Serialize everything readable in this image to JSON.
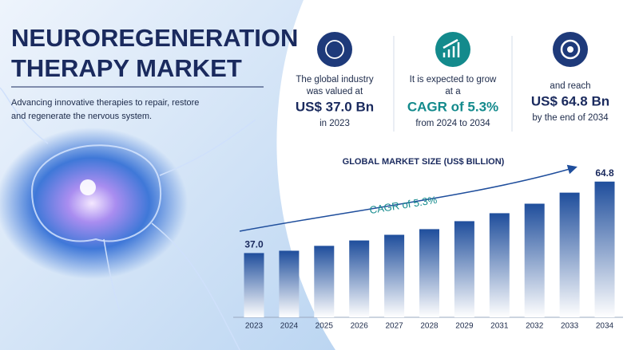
{
  "header": {
    "title_lines": [
      "NEUROREGENERATION",
      "THERAPY MARKET"
    ],
    "subtitle_lines": [
      "Advancing innovative therapies to repair, restore",
      "and regenerate the nervous system."
    ]
  },
  "stats": [
    {
      "intro": [
        "The global industry",
        "was valued at"
      ],
      "value": "US$ 37.0 Bn",
      "note": "in 2023"
    },
    {
      "intro": [
        "It is expected to grow",
        "at a"
      ],
      "value": "CAGR of 5.3%",
      "note": "from 2024 to 2034"
    },
    {
      "intro": [
        "and reach"
      ],
      "value": "US$ 64.8 Bn",
      "note": "by the end of 2034"
    }
  ],
  "chart_data": {
    "type": "bar",
    "title": "GLOBAL MARKET SIZE  (US$ BILLION)",
    "annotation": "CAGR of 5.3%",
    "categories": [
      "2023",
      "2024",
      "2025",
      "2026",
      "2027",
      "2028",
      "2029",
      "2031",
      "2032",
      "2033",
      "2034"
    ],
    "values": [
      37.0,
      37.9,
      39.8,
      41.9,
      44.1,
      46.3,
      49.4,
      52.5,
      56.2,
      60.5,
      64.8
    ],
    "value_labels": [
      "37.0",
      null,
      null,
      null,
      null,
      null,
      null,
      null,
      null,
      null,
      "64.8"
    ],
    "color": "#1f4e9c",
    "ylim": [
      12,
      70
    ],
    "grid": false
  }
}
